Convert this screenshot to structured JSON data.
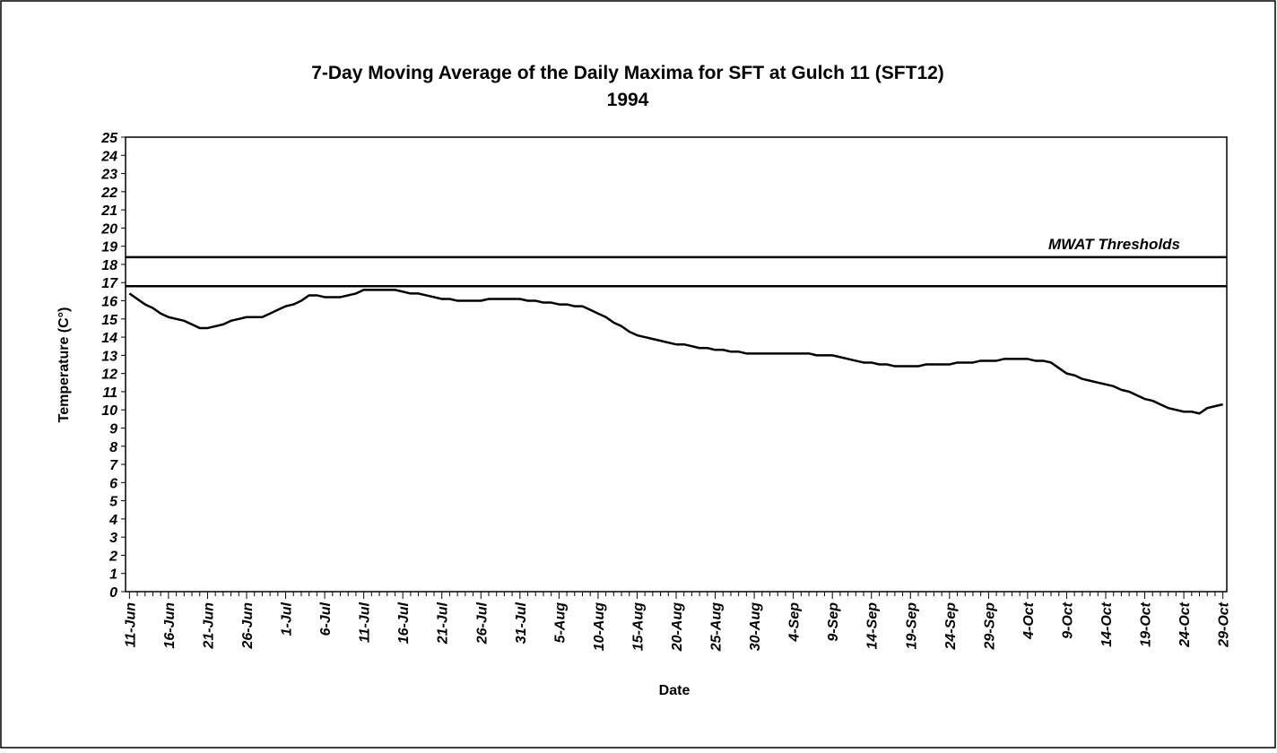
{
  "chart_data": {
    "type": "line",
    "title": "7-Day Moving Average of the Daily Maxima for SFT at Gulch 11 (SFT12)",
    "subtitle": "1994",
    "x_label": "Date",
    "y_label": "Temperature (C°)",
    "annotation": "MWAT Thresholds",
    "thresholds": [
      16.8,
      18.4
    ],
    "color": "#000000",
    "categories": [
      "11-Jun",
      null,
      null,
      null,
      null,
      "16-Jun",
      null,
      null,
      null,
      null,
      "21-Jun",
      null,
      null,
      null,
      null,
      "26-Jun",
      null,
      null,
      null,
      null,
      "1-Jul",
      null,
      null,
      null,
      null,
      "6-Jul",
      null,
      null,
      null,
      null,
      "11-Jul",
      null,
      null,
      null,
      null,
      "16-Jul",
      null,
      null,
      null,
      null,
      "21-Jul",
      null,
      null,
      null,
      null,
      "26-Jul",
      null,
      null,
      null,
      null,
      "31-Jul",
      null,
      null,
      null,
      null,
      "5-Aug",
      null,
      null,
      null,
      null,
      "10-Aug",
      null,
      null,
      null,
      null,
      "15-Aug",
      null,
      null,
      null,
      null,
      "20-Aug",
      null,
      null,
      null,
      null,
      "25-Aug",
      null,
      null,
      null,
      null,
      "30-Aug",
      null,
      null,
      null,
      null,
      "4-Sep",
      null,
      null,
      null,
      null,
      "9-Sep",
      null,
      null,
      null,
      null,
      "14-Sep",
      null,
      null,
      null,
      null,
      "19-Sep",
      null,
      null,
      null,
      null,
      "24-Sep",
      null,
      null,
      null,
      null,
      "29-Sep",
      null,
      null,
      null,
      null,
      "4-Oct",
      null,
      null,
      null,
      null,
      "9-Oct",
      null,
      null,
      null,
      null,
      "14-Oct",
      null,
      null,
      null,
      null,
      "19-Oct",
      null,
      null,
      null,
      null,
      "24-Oct",
      null,
      null,
      null,
      null,
      "29-Oct"
    ],
    "values": [
      16.4,
      16.1,
      15.8,
      15.6,
      15.3,
      15.1,
      15.0,
      14.9,
      14.7,
      14.5,
      14.5,
      14.6,
      14.7,
      14.9,
      15.0,
      15.1,
      15.1,
      15.1,
      15.3,
      15.5,
      15.7,
      15.8,
      16.0,
      16.3,
      16.3,
      16.2,
      16.2,
      16.2,
      16.3,
      16.4,
      16.6,
      16.6,
      16.6,
      16.6,
      16.6,
      16.5,
      16.4,
      16.4,
      16.3,
      16.2,
      16.1,
      16.1,
      16.0,
      16.0,
      16.0,
      16.0,
      16.1,
      16.1,
      16.1,
      16.1,
      16.1,
      16.0,
      16.0,
      15.9,
      15.9,
      15.8,
      15.8,
      15.7,
      15.7,
      15.5,
      15.3,
      15.1,
      14.8,
      14.6,
      14.3,
      14.1,
      14.0,
      13.9,
      13.8,
      13.7,
      13.6,
      13.6,
      13.5,
      13.4,
      13.4,
      13.3,
      13.3,
      13.2,
      13.2,
      13.1,
      13.1,
      13.1,
      13.1,
      13.1,
      13.1,
      13.1,
      13.1,
      13.1,
      13.0,
      13.0,
      13.0,
      12.9,
      12.8,
      12.7,
      12.6,
      12.6,
      12.5,
      12.5,
      12.4,
      12.4,
      12.4,
      12.4,
      12.5,
      12.5,
      12.5,
      12.5,
      12.6,
      12.6,
      12.6,
      12.7,
      12.7,
      12.7,
      12.8,
      12.8,
      12.8,
      12.8,
      12.7,
      12.7,
      12.6,
      12.3,
      12.0,
      11.9,
      11.7,
      11.6,
      11.5,
      11.4,
      11.3,
      11.1,
      11.0,
      10.8,
      10.6,
      10.5,
      10.3,
      10.1,
      10.0,
      9.9,
      9.9,
      9.8,
      10.1,
      10.2,
      10.3
    ],
    "ylim": [
      0,
      25
    ],
    "yticks": [
      0,
      1,
      2,
      3,
      4,
      5,
      6,
      7,
      8,
      9,
      10,
      11,
      12,
      13,
      14,
      15,
      16,
      17,
      18,
      19,
      20,
      21,
      22,
      23,
      24,
      25
    ]
  }
}
